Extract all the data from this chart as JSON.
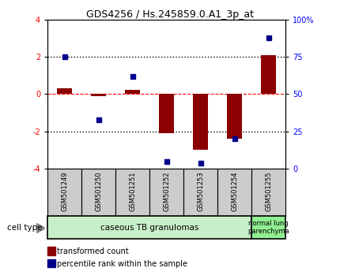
{
  "title": "GDS4256 / Hs.245859.0.A1_3p_at",
  "samples": [
    "GSM501249",
    "GSM501250",
    "GSM501251",
    "GSM501252",
    "GSM501253",
    "GSM501254",
    "GSM501255"
  ],
  "transformed_count": [
    0.32,
    -0.1,
    0.22,
    -2.1,
    -3.0,
    -2.4,
    2.1
  ],
  "percentile_rank": [
    75,
    33,
    62,
    5,
    4,
    20,
    88
  ],
  "ylim_left": [
    -4,
    4
  ],
  "ylim_right": [
    0,
    100
  ],
  "yticks_left": [
    -4,
    -2,
    0,
    2,
    4
  ],
  "ytick_labels_left": [
    "-4",
    "-2",
    "0",
    "2",
    "4"
  ],
  "yticks_right": [
    0,
    25,
    50,
    75,
    100
  ],
  "ytick_labels_right": [
    "0",
    "25",
    "50",
    "75",
    "100%"
  ],
  "bar_color": "#8B0000",
  "dot_color": "#00008B",
  "group1_label": "caseous TB granulomas",
  "group2_label": "normal lung\nparenchyma",
  "group1_color": "#c8f0c8",
  "group2_color": "#90ee90",
  "cell_type_label": "cell type",
  "legend_red_label": "transformed count",
  "legend_blue_label": "percentile rank within the sample",
  "dotted_line_color": "black",
  "dashed_line_color": "red",
  "bg_color": "white",
  "sample_box_color": "#cccccc",
  "n_group1": 6,
  "n_group2": 1
}
